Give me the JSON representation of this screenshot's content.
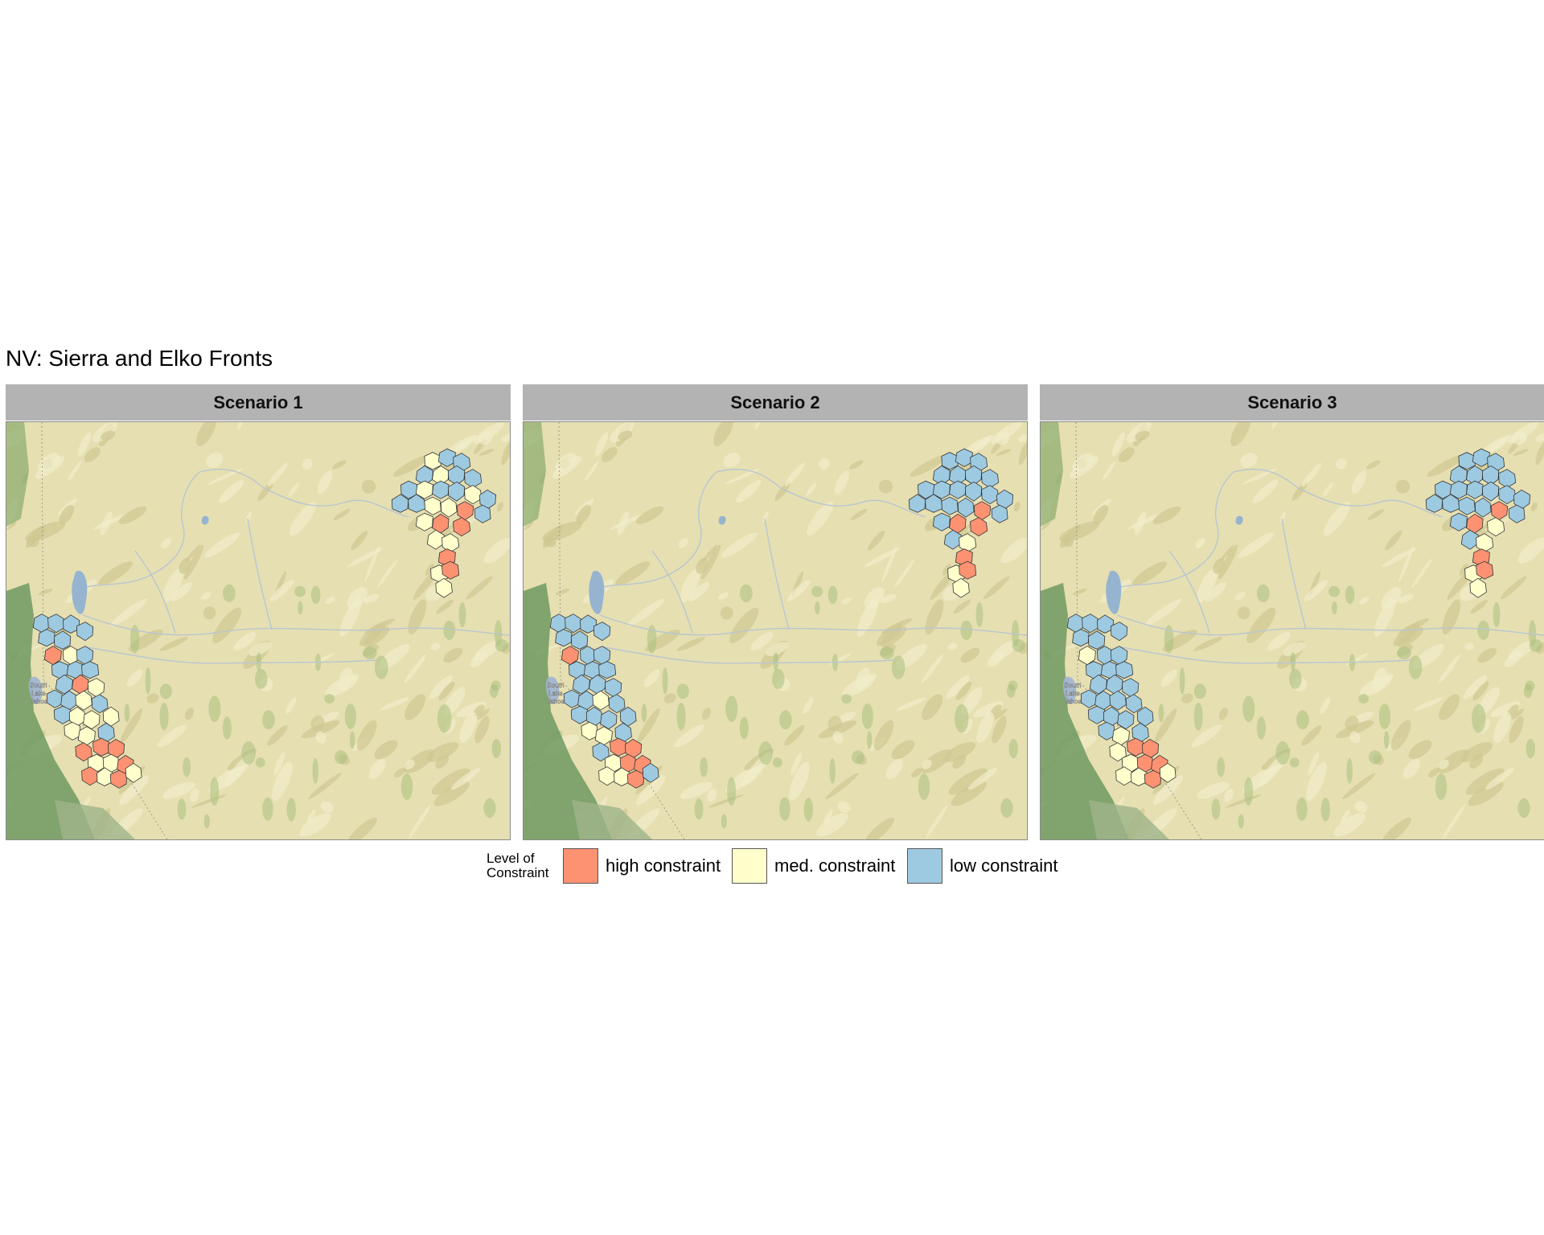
{
  "title": "NV: Sierra and Elko Fronts",
  "panels": [
    {
      "label": "Scenario 1",
      "city_label": "South Lake Tahoe"
    },
    {
      "label": "Scenario 2",
      "city_label": "South Lake Tahoe"
    },
    {
      "label": "Scenario 3",
      "city_label": "South Lake Tahoe"
    }
  ],
  "legend": {
    "title": "Level of\nConstraint",
    "items": [
      {
        "label": "high constraint",
        "color": "#fc9272"
      },
      {
        "label": "med. constraint",
        "color": "#ffffcc"
      },
      {
        "label": "low constraint",
        "color": "#9ecae1"
      }
    ]
  },
  "scenario_classes": [
    {
      "sierra": [
        "low",
        "low",
        "low",
        "low",
        "low",
        "low",
        "high",
        "med",
        "low",
        "low",
        "low",
        "low",
        "low",
        "high",
        "med",
        "low",
        "low",
        "med",
        "low",
        "med",
        "low",
        "med",
        "med",
        "low",
        "med",
        "med",
        "high",
        "high",
        "high",
        "med",
        "med",
        "high",
        "high",
        "med",
        "high",
        "med"
      ],
      "elko": [
        "med",
        "low",
        "low",
        "low",
        "med",
        "low",
        "low",
        "low",
        "med",
        "low",
        "low",
        "med",
        "low",
        "low",
        "low",
        "med",
        "med",
        "high",
        "low",
        "med",
        "high",
        "high",
        "med",
        "med",
        "high",
        "med",
        "high",
        "med"
      ]
    },
    {
      "sierra": [
        "low",
        "low",
        "low",
        "low",
        "low",
        "low",
        "high",
        "low",
        "low",
        "low",
        "low",
        "low",
        "low",
        "low",
        "low",
        "low",
        "low",
        "med",
        "low",
        "low",
        "low",
        "low",
        "low",
        "low",
        "med",
        "med",
        "high",
        "high",
        "low",
        "med",
        "high",
        "high",
        "med",
        "med",
        "high",
        "low"
      ],
      "elko": [
        "low",
        "low",
        "low",
        "low",
        "low",
        "low",
        "low",
        "low",
        "low",
        "low",
        "low",
        "low",
        "low",
        "low",
        "low",
        "low",
        "low",
        "high",
        "low",
        "low",
        "high",
        "high",
        "low",
        "med",
        "high",
        "med",
        "high",
        "med"
      ]
    },
    {
      "sierra": [
        "low",
        "low",
        "low",
        "low",
        "low",
        "low",
        "med",
        "low",
        "low",
        "low",
        "low",
        "low",
        "low",
        "low",
        "low",
        "low",
        "low",
        "low",
        "low",
        "low",
        "low",
        "low",
        "low",
        "low",
        "low",
        "med",
        "high",
        "high",
        "med",
        "med",
        "high",
        "high",
        "med",
        "med",
        "high",
        "med"
      ],
      "elko": [
        "low",
        "low",
        "low",
        "low",
        "low",
        "low",
        "low",
        "low",
        "low",
        "low",
        "low",
        "low",
        "low",
        "low",
        "low",
        "low",
        "low",
        "high",
        "low",
        "low",
        "high",
        "med",
        "low",
        "med",
        "high",
        "med",
        "high",
        "med"
      ]
    }
  ]
}
